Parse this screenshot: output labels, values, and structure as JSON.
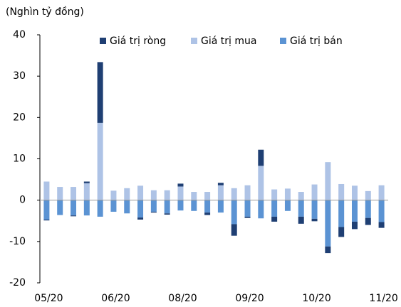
{
  "chart_data": {
    "type": "stacked_bar",
    "y_label": "(Nghìn tỷ đồng)",
    "categories": [
      "05/20",
      null,
      null,
      null,
      null,
      "06/20",
      null,
      null,
      null,
      null,
      "08/20",
      null,
      null,
      null,
      null,
      "09/20",
      null,
      null,
      null,
      null,
      "10/20",
      null,
      null,
      null,
      null,
      "11/20"
    ],
    "series": [
      {
        "name": "Giá trị ròng",
        "color": "#1f3f73",
        "values": [
          -0.2,
          0,
          -0.2,
          0.4,
          14.7,
          0,
          0,
          -0.5,
          -0.2,
          -0.3,
          0.7,
          0,
          -0.6,
          0.6,
          -2.8,
          -0.3,
          3.9,
          -1.2,
          0,
          -1.7,
          -0.6,
          -1.6,
          -2.4,
          -1.8,
          -1.7,
          -1.4
        ]
      },
      {
        "name": "Giá trị mua",
        "color": "#aec3e6",
        "values": [
          4.5,
          3.2,
          3.2,
          4.1,
          18.7,
          2.3,
          2.9,
          3.5,
          2.4,
          2.4,
          3.3,
          2.0,
          2.0,
          3.6,
          2.9,
          3.6,
          8.3,
          2.6,
          2.8,
          2.0,
          3.8,
          9.2,
          3.9,
          3.5,
          2.2,
          3.6
        ]
      },
      {
        "name": "Giá trị bán",
        "color": "#5b93d3",
        "values": [
          -4.7,
          -3.6,
          -3.7,
          -3.7,
          -4.0,
          -2.8,
          -3.2,
          -4.2,
          -2.8,
          -3.2,
          -2.5,
          -2.6,
          -3.0,
          -3.0,
          -5.8,
          -4.0,
          -4.4,
          -4.0,
          -2.6,
          -4.0,
          -4.5,
          -11.2,
          -6.5,
          -5.2,
          -4.3,
          -5.3
        ]
      }
    ],
    "ylim": [
      -20,
      40
    ],
    "yticks": [
      -20,
      -10,
      0,
      10,
      20,
      30,
      40
    ],
    "grid": false,
    "legend": "top"
  }
}
